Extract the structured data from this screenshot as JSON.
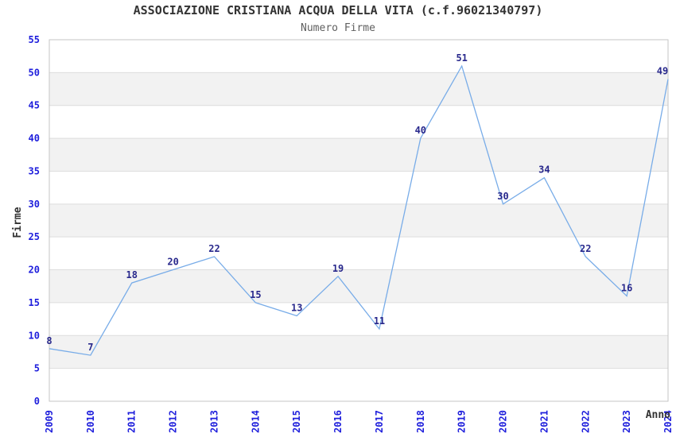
{
  "chart_data": {
    "type": "line",
    "title": "ASSOCIAZIONE CRISTIANA ACQUA DELLA VITA (c.f.96021340797)",
    "subtitle": "Numero Firme",
    "xlabel": "Anno",
    "ylabel": "Firme",
    "categories": [
      "2009",
      "2010",
      "2011",
      "2012",
      "2013",
      "2014",
      "2015",
      "2016",
      "2017",
      "2018",
      "2019",
      "2020",
      "2021",
      "2022",
      "2023",
      "2024"
    ],
    "values": [
      8,
      7,
      18,
      20,
      22,
      15,
      13,
      19,
      11,
      40,
      51,
      30,
      34,
      22,
      16,
      49
    ],
    "yticks": [
      0,
      5,
      10,
      15,
      20,
      25,
      30,
      35,
      40,
      45,
      50,
      55
    ],
    "ylim": [
      0,
      55
    ],
    "grid": "horizontal",
    "banded_background": true,
    "legend": "none",
    "point_labels_visible": true,
    "x_tick_rotation": -90,
    "colors": {
      "line": "#78ace8",
      "tick_label": "#1e1edc",
      "data_label": "#28288c",
      "band": "#f2f2f2",
      "grid": "#dddddd",
      "border": "#c6c6c6",
      "title": "#333333",
      "subtitle": "#606060",
      "axis_title": "#333333",
      "background": "#ffffff"
    }
  }
}
